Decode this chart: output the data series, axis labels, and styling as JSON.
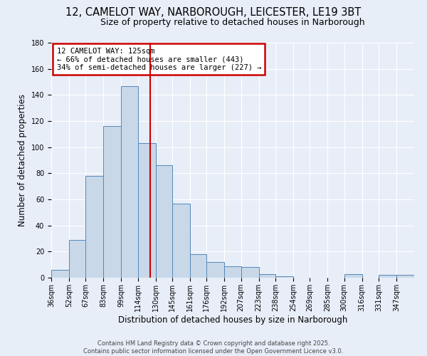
{
  "title": "12, CAMELOT WAY, NARBOROUGH, LEICESTER, LE19 3BT",
  "subtitle": "Size of property relative to detached houses in Narborough",
  "xlabel": "Distribution of detached houses by size in Narborough",
  "ylabel": "Number of detached properties",
  "bin_labels": [
    "36sqm",
    "52sqm",
    "67sqm",
    "83sqm",
    "99sqm",
    "114sqm",
    "130sqm",
    "145sqm",
    "161sqm",
    "176sqm",
    "192sqm",
    "207sqm",
    "223sqm",
    "238sqm",
    "254sqm",
    "269sqm",
    "285sqm",
    "300sqm",
    "316sqm",
    "331sqm",
    "347sqm"
  ],
  "bar_heights": [
    6,
    29,
    78,
    116,
    147,
    103,
    86,
    57,
    18,
    12,
    9,
    8,
    3,
    1,
    0,
    0,
    0,
    3,
    0,
    2,
    2
  ],
  "bar_color": "#c8d8e8",
  "bar_edge_color": "#5588bb",
  "vline_x": 125,
  "vline_color": "#cc0000",
  "ylim": [
    0,
    180
  ],
  "yticks": [
    0,
    20,
    40,
    60,
    80,
    100,
    120,
    140,
    160,
    180
  ],
  "annotation_title": "12 CAMELOT WAY: 125sqm",
  "annotation_line1": "← 66% of detached houses are smaller (443)",
  "annotation_line2": "34% of semi-detached houses are larger (227) →",
  "annotation_box_color": "#ffffff",
  "annotation_box_edge_color": "#cc0000",
  "footer1": "Contains HM Land Registry data © Crown copyright and database right 2025.",
  "footer2": "Contains public sector information licensed under the Open Government Licence v3.0.",
  "background_color": "#e8eef8",
  "plot_bg_color": "#e8eef8",
  "grid_color": "#ffffff",
  "title_fontsize": 10.5,
  "subtitle_fontsize": 9,
  "axis_label_fontsize": 8.5,
  "tick_fontsize": 7,
  "footer_fontsize": 6,
  "annotation_fontsize": 7.5
}
